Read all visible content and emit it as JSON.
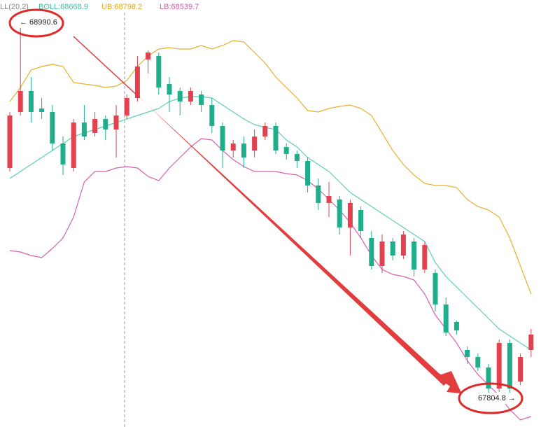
{
  "chart_data": {
    "type": "candlestick",
    "legend": [
      {
        "text": "LL(20,2)",
        "color": "#8a8a8a"
      },
      {
        "text": "BOLL:68668.9",
        "color": "#3fbfa3"
      },
      {
        "text": "UB:68798.2",
        "color": "#e0a81e"
      },
      {
        "text": "LB:68539.7",
        "color": "#d55aa8"
      }
    ],
    "annotations": [
      "← 68990.6",
      "67804.8 →"
    ],
    "ylim": [
      67715,
      69057
    ],
    "up_color": "#e2414f",
    "down_color": "#1fae8b",
    "open": [
      68529,
      68705,
      68771,
      68716,
      68705,
      68606,
      68529,
      68672,
      68639,
      68683,
      68650,
      68694,
      68749,
      68870,
      68881,
      68793,
      68771,
      68738,
      68760,
      68727,
      68661,
      68584,
      68606,
      68584,
      68628,
      68661,
      68595,
      68573,
      68551,
      68474,
      68419,
      68430,
      68342,
      68397,
      68309,
      68221,
      68298,
      68254,
      68298,
      68210,
      68199,
      68100,
      68045,
      67957,
      67935,
      67902,
      67836,
      67979,
      67858,
      67957
    ],
    "high": [
      68705,
      68990.6,
      68815,
      68749,
      68727,
      68628,
      68683,
      68727,
      68705,
      68694,
      68727,
      68760,
      68881,
      68898.6,
      68892,
      68815,
      68782,
      68782,
      68771,
      68749,
      68672,
      68617,
      68628,
      68650,
      68672,
      68672,
      68606,
      68584,
      68562,
      68496,
      68485,
      68441,
      68430,
      68408,
      68331,
      68320,
      68309,
      68331,
      68309,
      68298,
      68210,
      68122,
      68049.4,
      67968,
      67946,
      67913,
      67990,
      67990,
      67946,
      68023
    ],
    "low": [
      68518,
      68694,
      68672,
      68683,
      68584,
      68507,
      68518,
      68617,
      68628,
      68617,
      68562,
      68683,
      68738,
      68826,
      68760,
      68705,
      68694,
      68727,
      68705,
      68639,
      68529,
      68562,
      68529,
      68562,
      68617,
      68573,
      68555.4,
      68529,
      68452,
      68397,
      68375,
      68320,
      68254,
      68309,
      68210,
      68199,
      68238.6,
      68243,
      68188,
      68199,
      68078,
      68001,
      68005.4,
      67913,
      67891,
      67820.6,
      67825,
      67804.8,
      67847,
      67935
    ],
    "close": [
      68694,
      68771,
      68705,
      68705,
      68606,
      68540,
      68672,
      68628,
      68683,
      68650,
      68694,
      68749,
      68848,
      68892,
      68782,
      68760,
      68738,
      68771,
      68727,
      68661,
      68584,
      68606,
      68562,
      68628,
      68661,
      68584,
      68573,
      68551,
      68474,
      68419,
      68441,
      68342,
      68419,
      68331,
      68221,
      68298,
      68254,
      68320,
      68210,
      68287,
      68100,
      68012,
      68018.6,
      67935,
      67902,
      67836,
      67979,
      67836,
      67935,
      68005.4
    ],
    "bands": [
      {
        "color": "#5ccfb6",
        "values": [
          68496,
          68518,
          68540,
          68562,
          68584,
          68606,
          68628,
          68639,
          68650,
          68661,
          68672,
          68683,
          68694,
          68705,
          68716,
          68738,
          68749,
          68753.4,
          68753.4,
          68749,
          68727,
          68705,
          68683,
          68665.4,
          68656.6,
          68650,
          68617,
          68595,
          68562,
          68540,
          68518,
          68485,
          68452,
          68430,
          68408,
          68386,
          68364,
          68342,
          68320,
          68298,
          68232,
          68188,
          68155,
          68122,
          68089,
          68056,
          68023,
          68001,
          67979,
          67957
        ]
      },
      {
        "color": "#e5b02b",
        "values": [
          68738,
          68782,
          68837,
          68848,
          68854.6,
          68848,
          68797.4,
          68793,
          68788.6,
          68782,
          68786.4,
          68804,
          68848,
          68881,
          68903,
          68907.4,
          68903,
          68903,
          68914,
          68903,
          68914,
          68929.4,
          68925,
          68892,
          68859,
          68815,
          68782,
          68749,
          68709.4,
          68705,
          68716,
          68722.6,
          68727,
          68716,
          68694,
          68639,
          68584,
          68540,
          68507,
          68480.6,
          68474,
          68474,
          68467.4,
          68430,
          68408,
          68397,
          68375,
          68309,
          68221,
          68133
        ]
      },
      {
        "color": "#d75fb0",
        "values": [
          68269.4,
          68265,
          68254,
          68247.4,
          68276,
          68309,
          68375,
          68485,
          68518,
          68518,
          68529,
          68533.4,
          68529,
          68502.6,
          68489.4,
          68529,
          68562,
          68595,
          68621.4,
          68617,
          68584,
          68555.4,
          68533.4,
          68518,
          68518,
          68518,
          68511.4,
          68507,
          68489.4,
          68463,
          68430,
          68397,
          68357.4,
          68309,
          68254,
          68210,
          68194.6,
          68188,
          68177,
          68133,
          68067,
          68023,
          67979,
          67924,
          67880,
          67847,
          67814,
          67770,
          67737,
          67748
        ]
      }
    ]
  }
}
